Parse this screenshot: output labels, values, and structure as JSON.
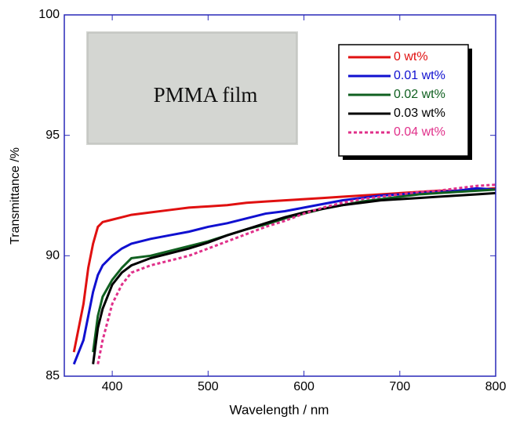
{
  "chart_data": {
    "type": "line",
    "xlabel": "Wavelength / nm",
    "ylabel": "Transmittance /%",
    "inset_label": "PMMA film",
    "x": [
      350,
      360,
      370,
      375,
      380,
      385,
      390,
      400,
      410,
      420,
      440,
      460,
      480,
      500,
      520,
      540,
      560,
      580,
      600,
      620,
      640,
      660,
      680,
      700,
      720,
      740,
      760,
      780,
      800
    ],
    "series": [
      {
        "name": "0 wt%",
        "color": "#e01010",
        "line_style": "solid",
        "values": [
          null,
          86,
          88,
          89.5,
          90.5,
          91.2,
          91.4,
          91.5,
          91.6,
          91.7,
          91.8,
          91.9,
          92.0,
          92.05,
          92.1,
          92.2,
          92.25,
          92.3,
          92.35,
          92.4,
          92.45,
          92.5,
          92.55,
          92.6,
          92.65,
          92.7,
          92.7,
          92.75,
          92.8
        ]
      },
      {
        "name": "0.01 wt%",
        "color": "#1010d0",
        "line_style": "solid",
        "values": [
          null,
          85.5,
          86.5,
          87.5,
          88.5,
          89.2,
          89.6,
          90.0,
          90.3,
          90.5,
          90.7,
          90.85,
          91.0,
          91.2,
          91.35,
          91.55,
          91.75,
          91.85,
          92.0,
          92.15,
          92.3,
          92.4,
          92.5,
          92.55,
          92.6,
          92.65,
          92.7,
          92.8,
          92.75
        ]
      },
      {
        "name": "0.02 wt%",
        "color": "#106020",
        "line_style": "solid",
        "values": [
          null,
          null,
          null,
          null,
          86,
          87.5,
          88.3,
          89.0,
          89.5,
          89.9,
          90.0,
          90.2,
          90.4,
          90.6,
          90.85,
          91.1,
          91.3,
          91.55,
          91.75,
          91.95,
          92.1,
          92.25,
          92.35,
          92.45,
          92.55,
          92.6,
          92.65,
          92.7,
          92.75
        ]
      },
      {
        "name": "0.03 wt%",
        "color": "#000000",
        "line_style": "solid",
        "values": [
          null,
          null,
          null,
          null,
          85.5,
          87,
          87.8,
          88.8,
          89.3,
          89.6,
          89.9,
          90.1,
          90.3,
          90.55,
          90.85,
          91.1,
          91.35,
          91.6,
          91.8,
          91.95,
          92.1,
          92.2,
          92.3,
          92.35,
          92.4,
          92.45,
          92.5,
          92.55,
          92.6
        ]
      },
      {
        "name": "0.04 wt%",
        "color": "#e0308a",
        "line_style": "dotted",
        "values": [
          null,
          null,
          null,
          null,
          null,
          85.5,
          86.5,
          88.0,
          88.8,
          89.3,
          89.6,
          89.8,
          90.0,
          90.3,
          90.6,
          90.9,
          91.2,
          91.45,
          91.75,
          92.0,
          92.2,
          92.35,
          92.45,
          92.55,
          92.65,
          92.7,
          92.8,
          92.9,
          92.95
        ]
      }
    ],
    "xlim": [
      350,
      800
    ],
    "xticks": [
      400,
      500,
      600,
      700,
      800
    ],
    "ylim": [
      85,
      100
    ],
    "yticks": [
      85,
      90,
      95,
      100
    ],
    "legend": "upper right",
    "axis_color": "#2828b8"
  }
}
